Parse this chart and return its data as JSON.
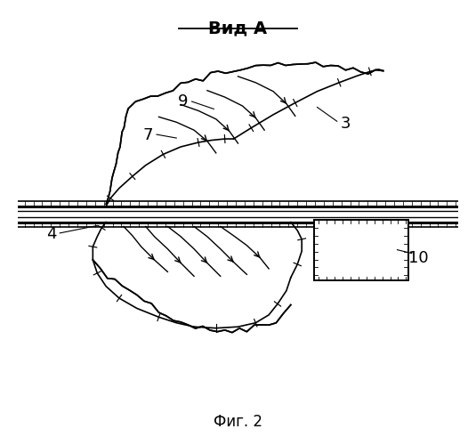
{
  "title": "Вид А",
  "caption": "Фиг. 2",
  "bg_color": "#ffffff",
  "line_color": "#000000"
}
